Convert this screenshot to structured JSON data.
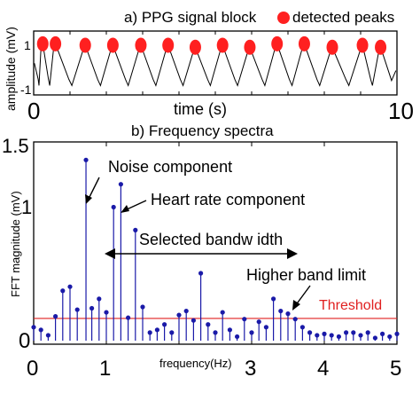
{
  "chart_data": [
    {
      "type": "line",
      "title": "a) PPG signal block",
      "xlabel": "time (s)",
      "ylabel": "amplitude (mV)",
      "xlim": [
        0,
        10
      ],
      "ylim": [
        -1,
        1
      ],
      "xticks": [
        "0",
        "10"
      ],
      "yticks": [
        "1",
        "-1"
      ],
      "legend": {
        "placement": "top-right",
        "entries": [
          "detected peaks"
        ],
        "marker_color": "#ff2020"
      },
      "series": [
        {
          "name": "detected peaks",
          "kind": "scatter",
          "color": "#ff2020",
          "x": [
            0.25,
            0.6,
            1.42,
            2.18,
            2.95,
            3.7,
            4.45,
            5.2,
            5.95,
            6.7,
            7.45,
            8.22,
            9.05,
            9.55
          ],
          "y": [
            0.88,
            0.88,
            0.82,
            0.82,
            0.82,
            0.82,
            0.74,
            0.82,
            0.74,
            0.88,
            0.88,
            0.74,
            0.82,
            0.74
          ]
        }
      ],
      "signal_color": "#000000"
    },
    {
      "type": "stem",
      "title": "b) Frequency spectra",
      "xlabel": "frequency(Hz)",
      "ylabel": "FFT magnitude (mV)",
      "xlim": [
        0,
        5
      ],
      "ylim": [
        0,
        1.5
      ],
      "xticks": [
        "0",
        "1",
        "2",
        "3",
        "4",
        "5"
      ],
      "yticks": [
        "0",
        "1",
        "1.5"
      ],
      "stem_color": "#1a1aa8",
      "threshold": {
        "value": 0.165,
        "label": "Threshold",
        "color": "#e02020"
      },
      "annotations": [
        {
          "text": "Noise component",
          "target": [
            0.72,
            1.34
          ]
        },
        {
          "text": "Heart rate component",
          "target": [
            1.2,
            1.16
          ]
        },
        {
          "text": "Selected bandw idth",
          "range": [
            1.0,
            3.6
          ]
        },
        {
          "text": "Higher band limit",
          "target": [
            3.6,
            0.2
          ]
        }
      ],
      "x": [
        0.0,
        0.1,
        0.2,
        0.3,
        0.4,
        0.5,
        0.6,
        0.72,
        0.8,
        0.9,
        1.0,
        1.1,
        1.2,
        1.3,
        1.4,
        1.5,
        1.6,
        1.7,
        1.8,
        1.9,
        2.0,
        2.1,
        2.2,
        2.3,
        2.4,
        2.5,
        2.6,
        2.7,
        2.8,
        2.9,
        3.0,
        3.1,
        3.2,
        3.3,
        3.4,
        3.5,
        3.6,
        3.7,
        3.8,
        3.9,
        4.0,
        4.1,
        4.2,
        4.3,
        4.4,
        4.5,
        4.6,
        4.7,
        4.8,
        4.9,
        5.0
      ],
      "y": [
        0.1,
        0.08,
        0.04,
        0.18,
        0.37,
        0.4,
        0.23,
        1.34,
        0.24,
        0.31,
        0.21,
        0.99,
        1.16,
        0.17,
        0.82,
        0.25,
        0.06,
        0.08,
        0.12,
        0.06,
        0.19,
        0.22,
        0.15,
        0.5,
        0.12,
        0.06,
        0.21,
        0.08,
        0.03,
        0.16,
        0.06,
        0.14,
        0.1,
        0.31,
        0.22,
        0.2,
        0.16,
        0.1,
        0.06,
        0.04,
        0.05,
        0.04,
        0.03,
        0.06,
        0.06,
        0.04,
        0.06,
        0.02,
        0.05,
        0.03,
        0.05
      ]
    }
  ]
}
